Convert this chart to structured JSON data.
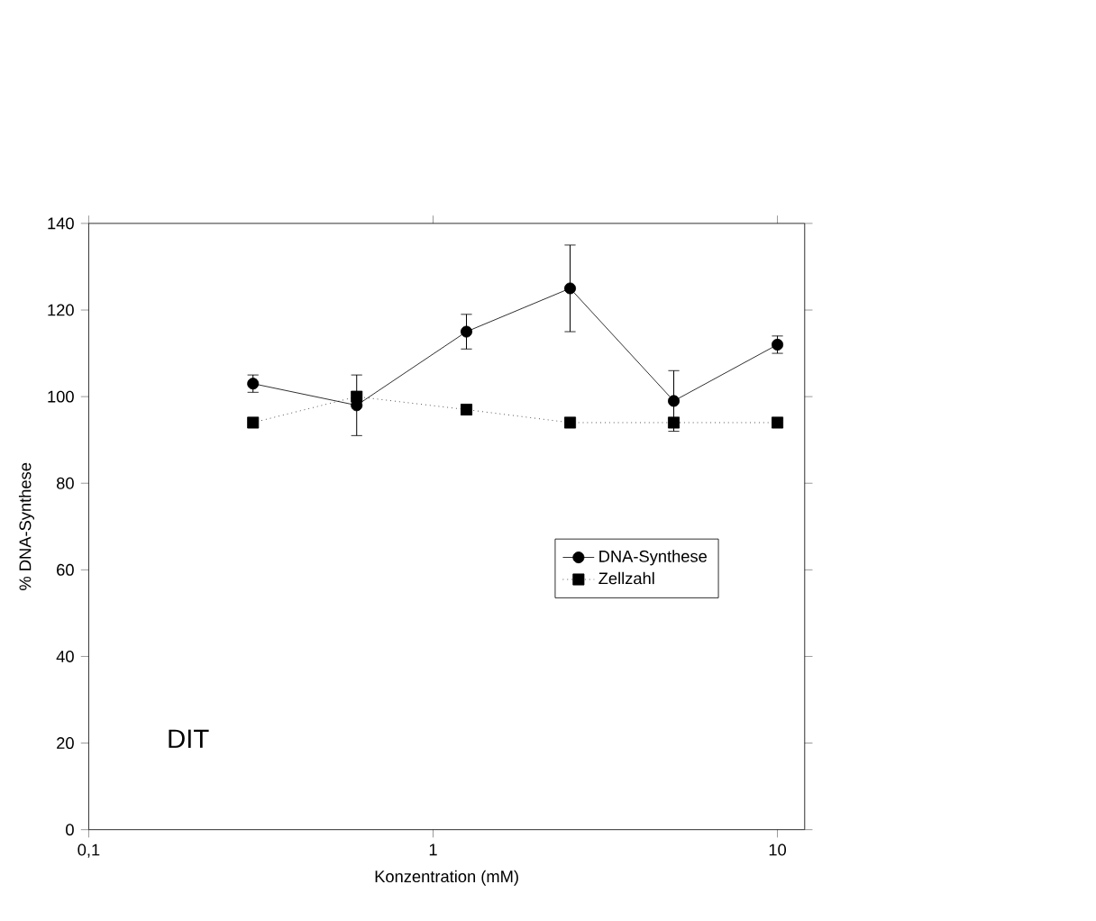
{
  "chart_data": {
    "type": "line",
    "xlabel": "Konzentration (mM)",
    "ylabel": "% DNA-Synthese",
    "log": "x",
    "xlim": [
      0.1,
      12
    ],
    "xticks": [
      {
        "value": 0.1,
        "label": "0,1"
      },
      1,
      10
    ],
    "ylim": [
      0,
      140
    ],
    "yticks": [
      0,
      20,
      40,
      60,
      80,
      100,
      120,
      140
    ],
    "x": [
      0.3,
      0.6,
      1.25,
      2.5,
      5,
      10
    ],
    "legend": "right",
    "grid": false,
    "annotations": [
      "DIT"
    ],
    "series": [
      {
        "name": "DNA-Synthese",
        "color": "#000000",
        "marker": "circle",
        "line_style": "solid",
        "values": [
          103,
          98,
          115,
          125,
          99,
          112
        ],
        "errors": [
          2,
          7,
          4,
          10,
          7,
          2
        ]
      },
      {
        "name": "Zellzahl",
        "color": "#000000",
        "marker": "square",
        "line_style": "dotted",
        "values": [
          94,
          100,
          97,
          94,
          94,
          94
        ]
      }
    ]
  }
}
